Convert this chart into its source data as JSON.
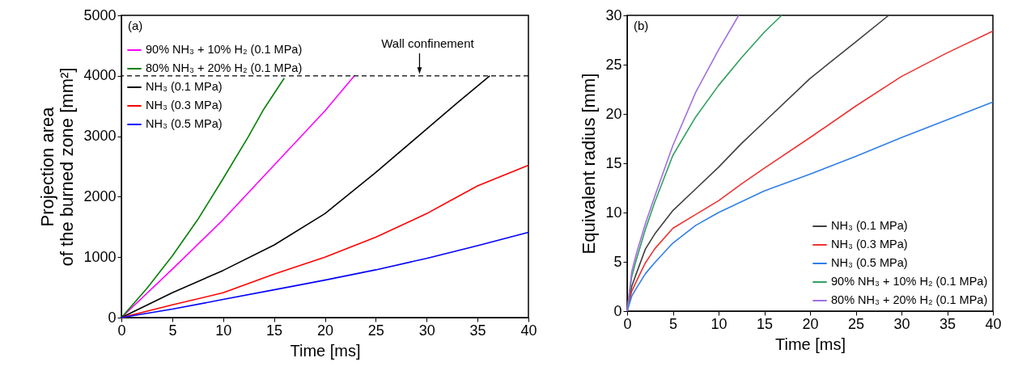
{
  "chart_data": [
    {
      "type": "line",
      "xlabel": "Time [ms]",
      "ylabel": "Projection area\nof the burned zone [mm²]",
      "xlim": [
        0,
        40
      ],
      "xticks": [
        0,
        5,
        10,
        15,
        20,
        25,
        30,
        35,
        40
      ],
      "ylim": [
        0,
        5000
      ],
      "yticks": [
        0,
        1000,
        2000,
        3000,
        4000,
        5000
      ],
      "grid": false,
      "legend": "top left",
      "marker": "none",
      "line_style": "solid",
      "annotations": [
        "(a)",
        {
          "text": "Wall confinement",
          "x": 29.3,
          "y": 4000
        }
      ],
      "ref_lines": [
        {
          "axis": "y",
          "value": 4000,
          "color": "#000000",
          "line_style": "dashed"
        }
      ],
      "series": [
        {
          "name": "90% NH₃ + 10% H₂ (0.1 MPa)",
          "color": "#ff00ff",
          "x": [
            0,
            5,
            10,
            15,
            20,
            22.9
          ],
          "values": [
            0,
            800,
            1620,
            2520,
            3420,
            4000
          ]
        },
        {
          "name": "80% NH₃ + 20% H₂ (0.1 MPa)",
          "color": "#008000",
          "x": [
            0,
            2.5,
            5,
            7.5,
            10,
            12.5,
            14,
            16
          ],
          "values": [
            0,
            480,
            1020,
            1620,
            2300,
            3000,
            3450,
            3960
          ]
        },
        {
          "name": "NH₃ (0.1 MPa)",
          "color": "#000000",
          "x": [
            0,
            5,
            10,
            15,
            20,
            25,
            30,
            33,
            36.2
          ],
          "values": [
            0,
            410,
            780,
            1200,
            1720,
            2400,
            3120,
            3550,
            4000
          ]
        },
        {
          "name": "NH₃ (0.3 MPa)",
          "color": "#ff0000",
          "x": [
            0,
            5,
            10,
            15,
            20,
            25,
            30,
            35,
            40
          ],
          "values": [
            0,
            210,
            410,
            720,
            1000,
            1330,
            1720,
            2180,
            2520
          ]
        },
        {
          "name": "NH₃ (0.5 MPa)",
          "color": "#0000ff",
          "x": [
            0,
            5,
            10,
            15,
            20,
            25,
            30,
            35,
            40
          ],
          "values": [
            0,
            140,
            300,
            460,
            620,
            790,
            980,
            1190,
            1410
          ]
        }
      ]
    },
    {
      "type": "line",
      "xlabel": "Time [ms]",
      "ylabel": "Equivalent radius [mm]",
      "xlim": [
        0,
        40
      ],
      "xticks": [
        0,
        5,
        10,
        15,
        20,
        25,
        30,
        35,
        40
      ],
      "ylim": [
        0,
        30
      ],
      "yticks": [
        0,
        5,
        10,
        15,
        20,
        25,
        30
      ],
      "grid": false,
      "legend": "bottom right",
      "marker": "none",
      "line_style": "solid",
      "annotations": [
        "(b)"
      ],
      "series": [
        {
          "name": "NH₃ (0.1 MPa)",
          "color": "#404040",
          "x": [
            0,
            0.5,
            1,
            2,
            3,
            5,
            7.5,
            10,
            12.5,
            15,
            20,
            25,
            28.6
          ],
          "values": [
            0,
            2.5,
            3.8,
            6.3,
            7.8,
            10.2,
            12.4,
            14.6,
            17.0,
            19.2,
            23.6,
            27.3,
            30
          ]
        },
        {
          "name": "NH₃ (0.3 MPa)",
          "color": "#ee3333",
          "x": [
            0,
            0.5,
            1,
            2,
            3,
            5,
            7.5,
            10,
            12.5,
            15,
            20,
            25,
            30,
            35,
            40
          ],
          "values": [
            0,
            2.0,
            3.0,
            4.9,
            6.3,
            8.4,
            9.8,
            11.2,
            12.9,
            14.5,
            17.6,
            20.8,
            23.8,
            26.2,
            28.4
          ]
        },
        {
          "name": "NH₃ (0.5 MPa)",
          "color": "#2f7fe8",
          "x": [
            0,
            0.5,
            1,
            2,
            3,
            5,
            7.5,
            10,
            15,
            20,
            25,
            30,
            35,
            40
          ],
          "values": [
            0,
            1.5,
            2.3,
            3.8,
            4.9,
            6.9,
            8.7,
            10.0,
            12.2,
            13.9,
            15.7,
            17.6,
            19.4,
            21.2
          ]
        },
        {
          "name": "90% NH₃ + 10% H₂ (0.1 MPa)",
          "color": "#30a060",
          "x": [
            0,
            0.5,
            1,
            2,
            3,
            4,
            5,
            7.5,
            10,
            12.5,
            15,
            16.9
          ],
          "values": [
            0,
            3.5,
            5.2,
            8.3,
            11.0,
            13.4,
            15.8,
            19.7,
            22.9,
            25.7,
            28.3,
            30
          ]
        },
        {
          "name": "80% NH₃ + 20% H₂ (0.1 MPa)",
          "color": "#a070e0",
          "x": [
            0,
            0.5,
            1,
            2,
            3,
            5,
            7.5,
            10,
            12.2
          ],
          "values": [
            0,
            4.0,
            5.8,
            8.9,
            11.6,
            16.8,
            22.2,
            26.5,
            30
          ]
        }
      ]
    }
  ]
}
